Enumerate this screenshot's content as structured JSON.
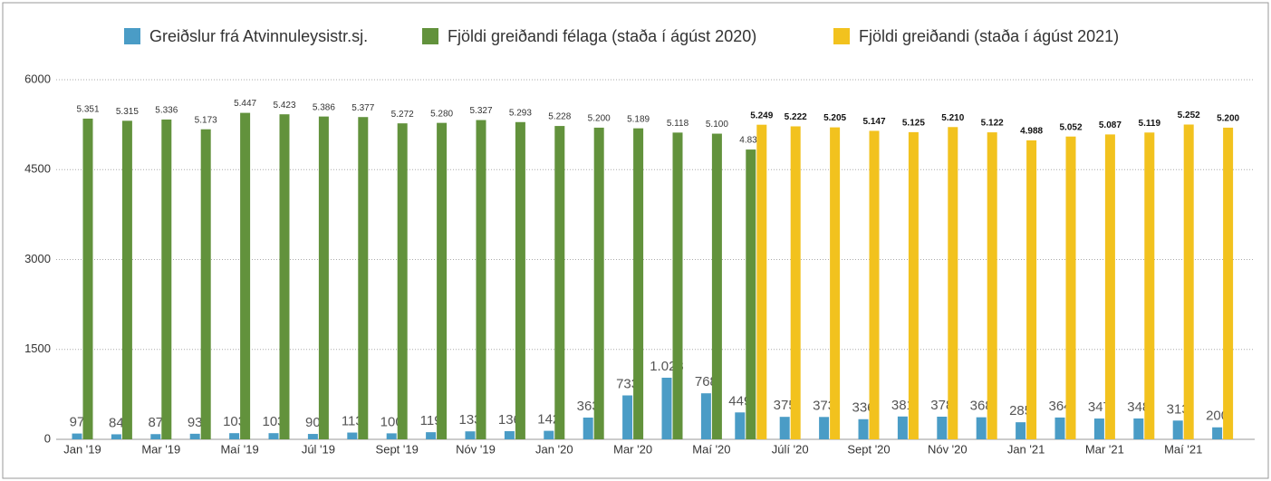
{
  "chart_data": {
    "type": "bar",
    "categories": [
      "Jan '19",
      null,
      "Mar '19",
      null,
      "Maí '19",
      null,
      "Júl '19",
      null,
      "Sept  '19",
      null,
      "Nóv '19",
      null,
      "Jan '20",
      null,
      "Mar '20",
      null,
      "Maí  '20",
      null,
      "Júlí '20",
      null,
      "Sept '20",
      null,
      "Nóv '20",
      null,
      "Jan '21",
      null,
      "Mar '21",
      null,
      "Maí '21",
      null
    ],
    "series": [
      {
        "name": "Greiðslur frá Atvinnuleysistr.sj.",
        "color": "#4a9cc6",
        "values": [
          97,
          84,
          87,
          93,
          103,
          103,
          90,
          113,
          100,
          119,
          133,
          136,
          142,
          363,
          733,
          1028,
          768,
          449,
          375,
          373,
          336,
          381,
          378,
          368,
          285,
          364,
          347,
          348,
          313,
          200
        ],
        "value_labels": [
          "97",
          "84",
          "87",
          "93",
          "103",
          "103",
          "90",
          "113",
          "100",
          "119",
          "133",
          "136",
          "142",
          "363",
          "733",
          "1.028",
          "768",
          "449",
          "375",
          "373",
          "336",
          "381",
          "378",
          "368",
          "285",
          "364",
          "347",
          "348",
          "313",
          "200"
        ]
      },
      {
        "name": "Fjöldi greiðandi félaga (staða í ágúst 2020)",
        "color": "#62923c",
        "values": [
          5351,
          5315,
          5336,
          5173,
          5447,
          5423,
          5386,
          5377,
          5272,
          5280,
          5327,
          5293,
          5228,
          5200,
          5189,
          5118,
          5100,
          4835,
          null,
          null,
          null,
          null,
          null,
          null,
          null,
          null,
          null,
          null,
          null,
          null
        ],
        "value_labels": [
          "5.351",
          "5.315",
          "5.336",
          "5.173",
          "5.447",
          "5.423",
          "5.386",
          "5.377",
          "5.272",
          "5.280",
          "5.327",
          "5.293",
          "5.228",
          "5.200",
          "5.189",
          "5.118",
          "5.100",
          "4.835",
          null,
          null,
          null,
          null,
          null,
          null,
          null,
          null,
          null,
          null,
          null,
          null
        ]
      },
      {
        "name": "Fjöldi greiðandi (staða í ágúst 2021)",
        "color": "#f2c21e",
        "values": [
          null,
          null,
          null,
          null,
          null,
          null,
          null,
          null,
          null,
          null,
          null,
          null,
          null,
          null,
          null,
          null,
          null,
          5249,
          5222,
          5205,
          5147,
          5125,
          5210,
          5122,
          4988,
          5052,
          5087,
          5119,
          5252,
          5200
        ],
        "value_labels": [
          null,
          null,
          null,
          null,
          null,
          null,
          null,
          null,
          null,
          null,
          null,
          null,
          null,
          null,
          null,
          null,
          null,
          "5.249",
          "5.222",
          "5.205",
          "5.147",
          "5.125",
          "5.210",
          "5.122",
          "4.988",
          "5.052",
          "5.087",
          "5.119",
          "5.252",
          "5.200"
        ]
      }
    ],
    "ylim": [
      0,
      6000
    ],
    "yticks": [
      0,
      1500,
      3000,
      4500,
      6000
    ],
    "grid": true,
    "legend": "top"
  }
}
